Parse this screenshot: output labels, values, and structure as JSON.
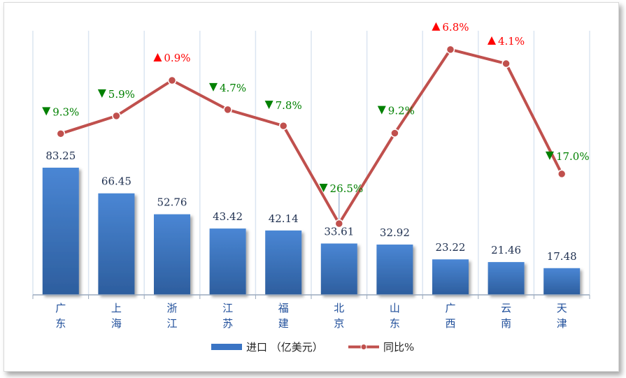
{
  "chart_data": {
    "type": "bar",
    "categories": [
      [
        "广",
        "东"
      ],
      [
        "上",
        "海"
      ],
      [
        "浙",
        "江"
      ],
      [
        "江",
        "苏"
      ],
      [
        "福",
        "建"
      ],
      [
        "北",
        "京"
      ],
      [
        "山",
        "东"
      ],
      [
        "广",
        "西"
      ],
      [
        "云",
        "南"
      ],
      [
        "天",
        "津"
      ]
    ],
    "series": [
      {
        "name": "进口（亿美元）",
        "type": "bar",
        "values": [
          83.25,
          66.45,
          52.76,
          43.42,
          42.14,
          33.61,
          32.92,
          23.22,
          21.46,
          17.48
        ],
        "labels": [
          "83.25",
          "66.45",
          "52.76",
          "43.42",
          "42.14",
          "33.61",
          "32.92",
          "23.22",
          "21.46",
          "17.48"
        ],
        "color": "#3a74c4"
      },
      {
        "name": "同比%",
        "type": "line",
        "values": [
          -9.3,
          -5.9,
          0.9,
          -4.7,
          -7.8,
          -26.5,
          -9.2,
          6.8,
          4.1,
          -17.0
        ],
        "labels": [
          "9.3%",
          "5.9%",
          "0.9%",
          "4.7%",
          "7.8%",
          "26.5%",
          "9.2%",
          "6.8%",
          "4.1%",
          "17.0%"
        ],
        "color": "#c0504d"
      }
    ],
    "up_color": "#ff0000",
    "down_color": "#008000",
    "legend": {
      "position": "bottom",
      "bar_label": "进口 （亿美元）",
      "line_label": "同比%"
    }
  }
}
